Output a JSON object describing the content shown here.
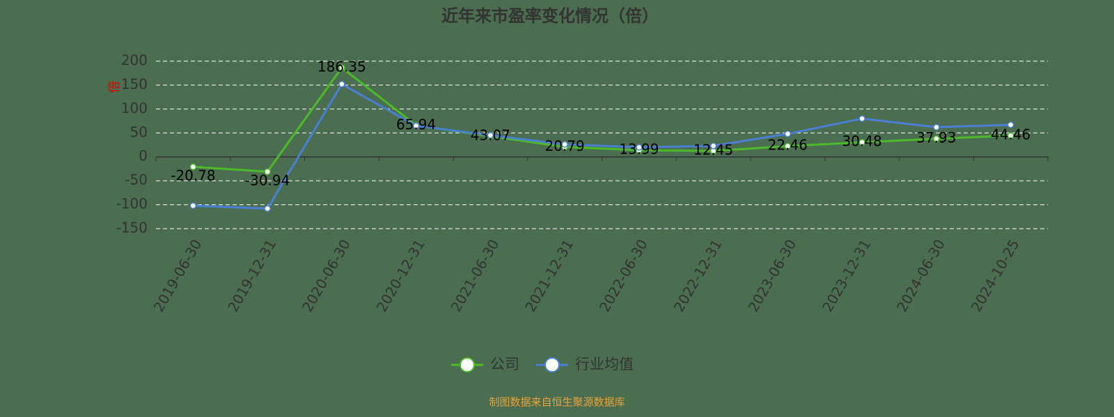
{
  "chart_data": {
    "type": "line",
    "title": "近年来市盈率变化情况（倍）",
    "y_label": "倍",
    "categories": [
      "2019-06-30",
      "2019-12-31",
      "2020-06-30",
      "2020-12-31",
      "2021-06-30",
      "2021-12-31",
      "2022-06-30",
      "2022-12-31",
      "2023-06-30",
      "2023-12-31",
      "2024-06-30",
      "2024-10-25"
    ],
    "series": [
      {
        "name": "公司",
        "color": "#4cbb2a",
        "values": [
          -20.78,
          -30.94,
          186.35,
          65.94,
          43.07,
          20.79,
          13.99,
          12.45,
          22.46,
          30.48,
          37.93,
          44.46
        ],
        "labels": true
      },
      {
        "name": "行业均值",
        "color": "#4a7fd6",
        "values": [
          -102,
          -108,
          152,
          65,
          45,
          26,
          20,
          23,
          48,
          80,
          62,
          67
        ],
        "labels": false
      }
    ],
    "ylim": [
      -150,
      200
    ],
    "yticks": [
      -150,
      -100,
      -50,
      0,
      50,
      100,
      150,
      200
    ],
    "grid": true,
    "source": "制图数据来自恒生聚源数据库"
  }
}
